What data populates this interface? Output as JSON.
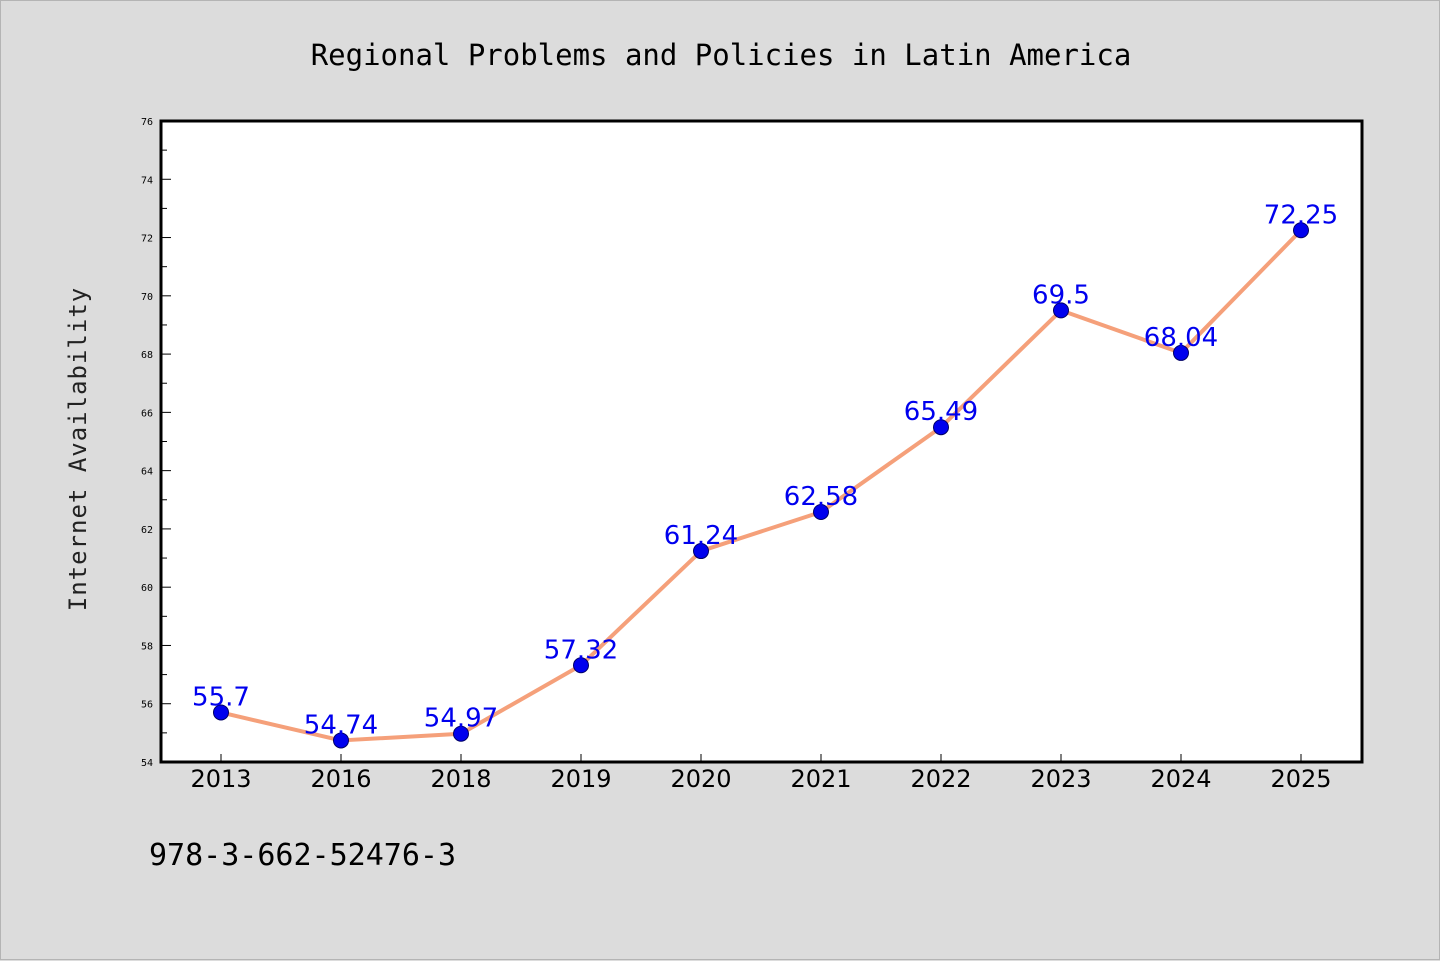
{
  "note": "978-3-662-52476-3",
  "colors": {
    "line": "#f5a07a",
    "marker": "#0000ee",
    "marker_edge": "#000066",
    "data_label": "#0000ee",
    "plot_background": "#ffffff",
    "figure_background": "#dcdcdc"
  },
  "chart_data": {
    "type": "line",
    "title": "Regional Problems and Policies in Latin America",
    "xlabel": "",
    "ylabel": "Internet Availability",
    "categories": [
      "2013",
      "2016",
      "2018",
      "2019",
      "2020",
      "2021",
      "2022",
      "2023",
      "2024",
      "2025"
    ],
    "series": [
      {
        "values": [
          55.7,
          54.74,
          54.97,
          57.32,
          61.24,
          62.58,
          65.49,
          69.5,
          68.04,
          72.25
        ],
        "labels": [
          "55.7",
          "54.74",
          "54.97",
          "57.32",
          "61.24",
          "62.58",
          "65.49",
          "69.5",
          "68.04",
          "72.25"
        ]
      }
    ],
    "ylim": [
      54,
      76
    ],
    "yticks": [
      "54",
      "56",
      "58",
      "60",
      "62",
      "64",
      "66",
      "68",
      "70",
      "72",
      "74",
      "76"
    ],
    "grid": false,
    "legend": "none"
  }
}
